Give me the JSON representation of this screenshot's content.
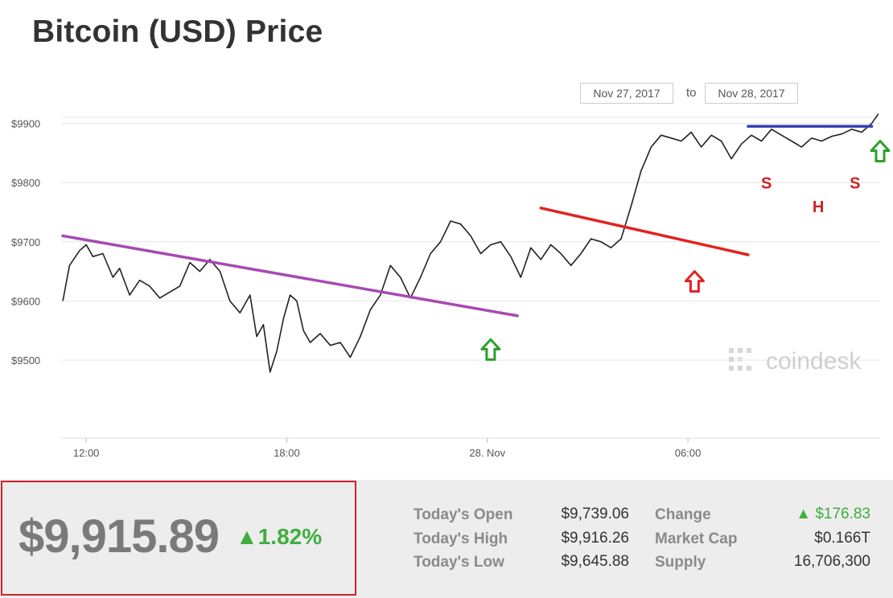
{
  "page": {
    "title": "Bitcoin (USD) Price",
    "date_from": "Nov 27, 2017",
    "date_to_label": "to",
    "date_to": "Nov 28, 2017",
    "watermark": "coindesk"
  },
  "chart_data": {
    "type": "line",
    "title": "",
    "xlabel": "",
    "ylabel": "",
    "x_ticks": [
      "12:00",
      "18:00",
      "28. Nov",
      "06:00"
    ],
    "y_ticks": [
      "$9500",
      "$9600",
      "$9700",
      "$9800",
      "$9900"
    ],
    "x_range_hours": [
      11.25,
      35.75
    ],
    "ylim": [
      9450,
      9925
    ],
    "grid": "horizontal",
    "series": [
      {
        "x": [
          11.3,
          11.5,
          11.8,
          12.0,
          12.2,
          12.5,
          12.8,
          13.0,
          13.3,
          13.6,
          13.9,
          14.2,
          14.5,
          14.8,
          15.1,
          15.4,
          15.7,
          16.0,
          16.3,
          16.6,
          16.9,
          17.1,
          17.3,
          17.5,
          17.7,
          17.9,
          18.1,
          18.3,
          18.5,
          18.7,
          19.0,
          19.3,
          19.6,
          19.9,
          20.2,
          20.5,
          20.8,
          21.1,
          21.4,
          21.7,
          22.0,
          22.3,
          22.6,
          22.9,
          23.2,
          23.5,
          23.8,
          24.1,
          24.4,
          24.7,
          25.0,
          25.3,
          25.6,
          25.9,
          26.2,
          26.5,
          26.8,
          27.1,
          27.4,
          27.7,
          28.0,
          28.3,
          28.6,
          28.9,
          29.2,
          29.5,
          29.8,
          30.1,
          30.4,
          30.7,
          31.0,
          31.3,
          31.6,
          31.9,
          32.2,
          32.5,
          32.8,
          33.1,
          33.4,
          33.7,
          34.0,
          34.3,
          34.6,
          34.9,
          35.2,
          35.5,
          35.7
        ],
        "y": [
          9600,
          9660,
          9685,
          9695,
          9675,
          9680,
          9640,
          9655,
          9610,
          9635,
          9625,
          9605,
          9615,
          9625,
          9665,
          9650,
          9670,
          9650,
          9600,
          9580,
          9610,
          9540,
          9560,
          9480,
          9515,
          9570,
          9610,
          9600,
          9550,
          9530,
          9545,
          9525,
          9530,
          9505,
          9540,
          9585,
          9610,
          9660,
          9640,
          9605,
          9640,
          9680,
          9700,
          9735,
          9730,
          9710,
          9680,
          9695,
          9700,
          9675,
          9640,
          9690,
          9670,
          9695,
          9680,
          9660,
          9680,
          9705,
          9700,
          9690,
          9705,
          9760,
          9820,
          9860,
          9880,
          9875,
          9870,
          9885,
          9860,
          9880,
          9870,
          9840,
          9865,
          9880,
          9870,
          9890,
          9880,
          9870,
          9860,
          9875,
          9870,
          9878,
          9882,
          9890,
          9885,
          9900,
          9916
        ]
      }
    ],
    "annotations": [
      {
        "type": "trendline",
        "color": "#a54ab2",
        "from": [
          11.3,
          9710
        ],
        "to": [
          24.9,
          9575
        ]
      },
      {
        "type": "trendline",
        "color": "#e32222",
        "from": [
          25.6,
          9757
        ],
        "to": [
          31.8,
          9678
        ]
      },
      {
        "type": "trendline",
        "color": "#3a3db5",
        "from": [
          31.8,
          9895
        ],
        "to": [
          35.5,
          9895
        ]
      },
      {
        "type": "arrow-up",
        "color": "#2aa02a",
        "at": [
          24.1,
          9535
        ]
      },
      {
        "type": "arrow-up",
        "color": "#e32222",
        "at": [
          30.2,
          9650
        ]
      },
      {
        "type": "arrow-up",
        "color": "#2aa02a",
        "at": [
          35.75,
          9870
        ]
      },
      {
        "type": "label",
        "text": "S",
        "color": "#cc2222",
        "at": [
          32.35,
          9790
        ]
      },
      {
        "type": "label",
        "text": "H",
        "color": "#cc2222",
        "at": [
          33.9,
          9750
        ]
      },
      {
        "type": "label",
        "text": "S",
        "color": "#cc2222",
        "at": [
          35.0,
          9790
        ]
      }
    ]
  },
  "stats": {
    "price": "$9,915.89",
    "change_pct": "▲1.82%",
    "today_open_label": "Today's Open",
    "today_open": "$9,739.06",
    "today_high_label": "Today's High",
    "today_high": "$9,916.26",
    "today_low_label": "Today's Low",
    "today_low": "$9,645.88",
    "change_label": "Change",
    "change_value": "▲ $176.83",
    "market_cap_label": "Market Cap",
    "market_cap": "$0.166T",
    "supply_label": "Supply",
    "supply": "16,706,300"
  },
  "colors": {
    "line": "#222222",
    "grid": "#e6e6e6",
    "up": "#3fae3f",
    "highlight_border": "#d0212b"
  }
}
